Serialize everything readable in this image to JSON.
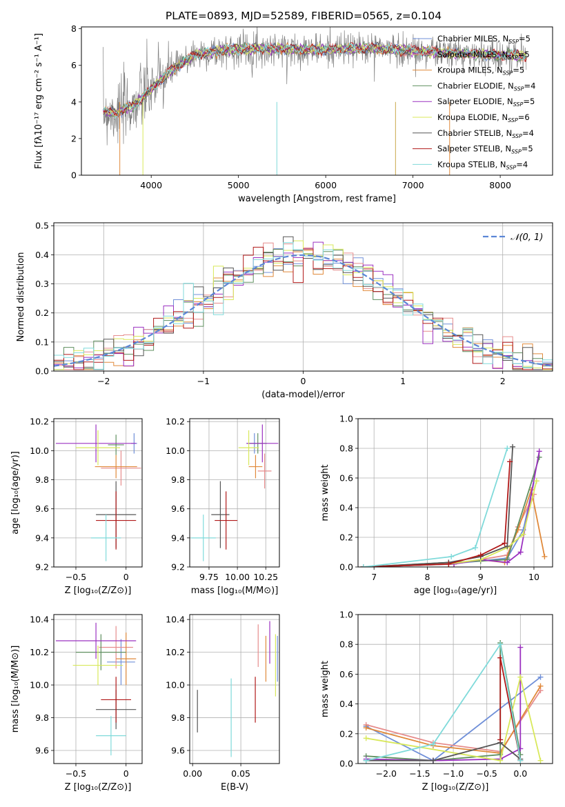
{
  "title": "PLATE=0893, MJD=52589, FIBERID=0565, z=0.104",
  "series": [
    {
      "key": "chabrier_miles",
      "color": "#6f8fd8",
      "label": "Chabrier MILES, N",
      "sub": "SSP",
      "tail": "=5"
    },
    {
      "key": "salpeter_miles",
      "color": "#e68c8c",
      "label": "Salpeter MILES, N",
      "sub": "SSP",
      "tail": "=5"
    },
    {
      "key": "kroupa_miles",
      "color": "#e0893a",
      "label": "Kroupa MILES, N",
      "sub": "SSP",
      "tail": "=5"
    },
    {
      "key": "chabrier_elodie",
      "color": "#5f8f5f",
      "label": "Chabrier ELODIE, N",
      "sub": "SSP",
      "tail": "=4"
    },
    {
      "key": "salpeter_elodie",
      "color": "#9b30c0",
      "label": "Salpeter ELODIE, N",
      "sub": "SSP",
      "tail": "=5"
    },
    {
      "key": "kroupa_elodie",
      "color": "#d8e85a",
      "label": "Kroupa ELODIE, N",
      "sub": "SSP",
      "tail": "=6"
    },
    {
      "key": "chabrier_stelib",
      "color": "#555555",
      "label": "Chabrier STELIB, N",
      "sub": "SSP",
      "tail": "=4"
    },
    {
      "key": "salpeter_stelib",
      "color": "#b01818",
      "label": "Salpeter STELIB, N",
      "sub": "SSP",
      "tail": "=5"
    },
    {
      "key": "kroupa_stelib",
      "color": "#7fdada",
      "label": "Kroupa STELIB, N",
      "sub": "SSP",
      "tail": "=4"
    }
  ],
  "chart_data": [
    {
      "id": "spectrum",
      "type": "line",
      "xlabel": "wavelength [Angstrom, rest frame]",
      "ylabel": "Flux [fλ10⁻¹⁷ erg cm⁻² s⁻¹ A⁻¹]",
      "xlim": [
        3200,
        8600
      ],
      "ylim": [
        0,
        8.1
      ],
      "xticks": [
        4000,
        5000,
        6000,
        7000,
        8000
      ],
      "yticks": [
        0,
        2,
        4,
        6,
        8
      ],
      "data_color": "#7f7f7f",
      "continuum": {
        "x": [
          3450,
          3600,
          3800,
          4000,
          4200,
          4500,
          5000,
          5500,
          6000,
          6500,
          7000,
          7500,
          8000,
          8300
        ],
        "y": [
          3.5,
          3.4,
          3.8,
          4.7,
          5.6,
          6.6,
          6.9,
          6.9,
          6.85,
          6.95,
          6.8,
          6.65,
          6.55,
          6.5
        ]
      }
    },
    {
      "id": "residuals",
      "type": "line",
      "xlabel": "(data-model)/error",
      "ylabel": "Normed distribution",
      "xlim": [
        -2.5,
        2.5
      ],
      "ylim": [
        0,
        0.51
      ],
      "xticks": [
        -2,
        -1,
        0,
        1,
        2
      ],
      "yticks": [
        0,
        0.1,
        0.2,
        0.3,
        0.4,
        0.5
      ],
      "legend": "𝒩(0, 1)",
      "legend_position": "top-right",
      "bin_width": 0.1,
      "normal_color": "#5b86d6"
    },
    {
      "id": "age_vs_Z",
      "type": "scatter",
      "xlabel": "Z [log₁₀(Z/Z⊙)]",
      "ylabel": "age  [log₁₀(age/yr)]",
      "xlim": [
        -0.72,
        0.16
      ],
      "ylim": [
        9.2,
        10.22
      ],
      "xticks": [
        -0.5,
        0.0
      ],
      "yticks": [
        9.2,
        9.4,
        9.6,
        9.8,
        10.0,
        10.2
      ],
      "points": [
        {
          "s": "chabrier_miles",
          "x": 0.08,
          "xerr": 0.03,
          "y": 10.05,
          "yerr": 0.07
        },
        {
          "s": "salpeter_miles",
          "x": -0.05,
          "xerr": 0.2,
          "y": 9.88,
          "yerr": 0.12
        },
        {
          "s": "kroupa_miles",
          "x": -0.1,
          "xerr": 0.21,
          "y": 9.89,
          "yerr": 0.08
        },
        {
          "s": "chabrier_elodie",
          "x": -0.1,
          "xerr": 0.08,
          "y": 10.04,
          "yerr": 0.07
        },
        {
          "s": "salpeter_elodie",
          "x": -0.3,
          "xerr": 0.4,
          "y": 10.05,
          "yerr": 0.13
        },
        {
          "s": "kroupa_elodie",
          "x": -0.28,
          "xerr": 0.22,
          "y": 10.02,
          "yerr": 0.12
        },
        {
          "s": "chabrier_stelib",
          "x": -0.1,
          "xerr": 0.2,
          "y": 9.56,
          "yerr": 0.23
        },
        {
          "s": "salpeter_stelib",
          "x": -0.1,
          "xerr": 0.2,
          "y": 9.52,
          "yerr": 0.2
        },
        {
          "s": "kroupa_stelib",
          "x": -0.2,
          "xerr": 0.15,
          "y": 9.4,
          "yerr": 0.16
        }
      ]
    },
    {
      "id": "age_vs_mass",
      "type": "scatter",
      "xlabel": "mass [log₁₀(M/M⊙)]",
      "ylabel": "",
      "xlim": [
        9.58,
        10.37
      ],
      "ylim": [
        9.2,
        10.22
      ],
      "xticks": [
        9.75,
        10.0,
        10.25
      ],
      "xticklabels": [
        "9.75",
        "10.00",
        "10.25"
      ],
      "yticks": [
        9.2,
        9.4,
        9.6,
        9.8,
        10.0,
        10.2
      ],
      "points": [
        {
          "s": "chabrier_miles",
          "x": 10.15,
          "xerr": 0.07,
          "y": 10.05,
          "yerr": 0.07
        },
        {
          "s": "salpeter_miles",
          "x": 10.24,
          "xerr": 0.06,
          "y": 9.86,
          "yerr": 0.12
        },
        {
          "s": "kroupa_miles",
          "x": 10.16,
          "xerr": 0.06,
          "y": 9.89,
          "yerr": 0.08
        },
        {
          "s": "chabrier_elodie",
          "x": 10.18,
          "xerr": 0.08,
          "y": 10.05,
          "yerr": 0.07
        },
        {
          "s": "salpeter_elodie",
          "x": 10.22,
          "xerr": 0.14,
          "y": 10.05,
          "yerr": 0.13
        },
        {
          "s": "kroupa_elodie",
          "x": 10.1,
          "xerr": 0.09,
          "y": 10.02,
          "yerr": 0.12
        },
        {
          "s": "chabrier_stelib",
          "x": 9.85,
          "xerr": 0.08,
          "y": 9.56,
          "yerr": 0.23
        },
        {
          "s": "salpeter_stelib",
          "x": 9.9,
          "xerr": 0.1,
          "y": 9.52,
          "yerr": 0.2
        },
        {
          "s": "kroupa_stelib",
          "x": 9.7,
          "xerr": 0.11,
          "y": 9.4,
          "yerr": 0.16
        }
      ]
    },
    {
      "id": "weight_vs_age",
      "type": "line",
      "xlabel": "age  [log₁₀(age/yr)]",
      "ylabel": "mass weight",
      "xlim": [
        6.7,
        10.35
      ],
      "ylim": [
        0,
        1.0
      ],
      "xticks": [
        7,
        8,
        9,
        10
      ],
      "yticks": [
        0,
        0.2,
        0.4,
        0.6,
        0.8,
        1.0
      ],
      "lines": [
        {
          "s": "chabrier_miles",
          "x": [
            6.8,
            8.4,
            9.0,
            9.5,
            9.8,
            10.0
          ],
          "y": [
            0.0,
            0.02,
            0.04,
            0.06,
            0.25,
            0.58
          ]
        },
        {
          "s": "salpeter_miles",
          "x": [
            6.8,
            8.4,
            9.0,
            9.5,
            9.7,
            10.0
          ],
          "y": [
            0.0,
            0.02,
            0.05,
            0.08,
            0.27,
            0.49
          ]
        },
        {
          "s": "kroupa_miles",
          "x": [
            6.8,
            8.5,
            9.0,
            9.45,
            9.7,
            9.95,
            10.2
          ],
          "y": [
            0.0,
            0.02,
            0.05,
            0.03,
            0.25,
            0.52,
            0.07
          ]
        },
        {
          "s": "chabrier_elodie",
          "x": [
            6.8,
            8.4,
            9.0,
            9.5,
            10.1
          ],
          "y": [
            0.0,
            0.03,
            0.04,
            0.05,
            0.74
          ]
        },
        {
          "s": "salpeter_elodie",
          "x": [
            6.8,
            8.5,
            9.0,
            9.5,
            9.75,
            10.1
          ],
          "y": [
            0.0,
            0.02,
            0.05,
            0.03,
            0.1,
            0.78
          ]
        },
        {
          "s": "kroupa_elodie",
          "x": [
            6.8,
            8.4,
            9.0,
            9.5,
            9.8,
            10.05
          ],
          "y": [
            0.0,
            0.02,
            0.05,
            0.13,
            0.22,
            0.58
          ]
        },
        {
          "s": "chabrier_stelib",
          "x": [
            6.8,
            8.4,
            9.0,
            9.5,
            9.6
          ],
          "y": [
            0.0,
            0.03,
            0.07,
            0.14,
            0.81
          ]
        },
        {
          "s": "salpeter_stelib",
          "x": [
            6.8,
            8.4,
            9.0,
            9.45,
            9.55
          ],
          "y": [
            0.0,
            0.02,
            0.08,
            0.16,
            0.71
          ]
        },
        {
          "s": "kroupa_stelib",
          "x": [
            6.8,
            8.45,
            8.9,
            9.5
          ],
          "y": [
            0.0,
            0.07,
            0.13,
            0.8
          ]
        }
      ]
    },
    {
      "id": "mass_vs_Z",
      "type": "scatter",
      "xlabel": "Z [log₁₀(Z/Z⊙)]",
      "ylabel": "mass [log₁₀(M/M⊙)]",
      "xlim": [
        -0.72,
        0.16
      ],
      "ylim": [
        9.52,
        10.43
      ],
      "xticks": [
        -0.5,
        0.0
      ],
      "yticks": [
        9.6,
        9.8,
        10.0,
        10.2,
        10.4
      ],
      "points": [
        {
          "s": "chabrier_miles",
          "x": -0.05,
          "xerr": 0.14,
          "y": 10.14,
          "yerr": 0.14
        },
        {
          "s": "salpeter_miles",
          "x": -0.1,
          "xerr": 0.17,
          "y": 10.23,
          "yerr": 0.13
        },
        {
          "s": "kroupa_miles",
          "x": 0.0,
          "xerr": 0.1,
          "y": 10.16,
          "yerr": 0.16
        },
        {
          "s": "chabrier_elodie",
          "x": -0.25,
          "xerr": 0.25,
          "y": 10.2,
          "yerr": 0.11
        },
        {
          "s": "salpeter_elodie",
          "x": -0.3,
          "xerr": 0.4,
          "y": 10.27,
          "yerr": 0.11
        },
        {
          "s": "kroupa_elodie",
          "x": -0.28,
          "xerr": 0.25,
          "y": 10.12,
          "yerr": 0.12
        },
        {
          "s": "chabrier_stelib",
          "x": -0.1,
          "xerr": 0.2,
          "y": 9.85,
          "yerr": 0.12
        },
        {
          "s": "salpeter_stelib",
          "x": -0.1,
          "xerr": 0.15,
          "y": 9.91,
          "yerr": 0.14
        },
        {
          "s": "kroupa_stelib",
          "x": -0.15,
          "xerr": 0.15,
          "y": 9.69,
          "yerr": 0.12
        }
      ]
    },
    {
      "id": "mass_vs_ebv",
      "type": "scatter",
      "xlabel": "E(B-V)",
      "ylabel": "",
      "xlim": [
        -0.003,
        0.09
      ],
      "ylim": [
        9.52,
        10.43
      ],
      "xticks": [
        0.0,
        0.05
      ],
      "xticklabels": [
        "0.00",
        "0.05"
      ],
      "yticks": [
        9.6,
        9.8,
        10.0,
        10.2,
        10.4
      ],
      "points": [
        {
          "s": "chabrier_miles",
          "x": 0.088,
          "y": 10.16,
          "yerr": 0.14
        },
        {
          "s": "salpeter_miles",
          "x": 0.068,
          "y": 10.24,
          "yerr": 0.13
        },
        {
          "s": "kroupa_miles",
          "x": 0.076,
          "y": 10.16,
          "yerr": 0.14
        },
        {
          "s": "chabrier_elodie",
          "x": 0.094,
          "y": 10.18,
          "yerr": 0.13
        },
        {
          "s": "salpeter_elodie",
          "x": 0.08,
          "y": 10.26,
          "yerr": 0.13
        },
        {
          "s": "kroupa_elodie",
          "x": 0.086,
          "y": 10.12,
          "yerr": 0.19
        },
        {
          "s": "chabrier_stelib",
          "x": 0.005,
          "y": 9.84,
          "yerr": 0.13
        },
        {
          "s": "salpeter_stelib",
          "x": 0.065,
          "y": 9.91,
          "yerr": 0.14
        },
        {
          "s": "kroupa_stelib",
          "x": 0.04,
          "y": 9.8,
          "yerr": 0.24
        }
      ]
    },
    {
      "id": "weight_vs_Z",
      "type": "line",
      "xlabel": "Z [log₁₀(Z/Z⊙)]",
      "ylabel": "mass weight",
      "xlim": [
        -2.42,
        0.48
      ],
      "ylim": [
        0,
        1.0
      ],
      "xticks": [
        -2.0,
        -1.5,
        -1.0,
        -0.5,
        0.0
      ],
      "xticklabels": [
        "−2.0",
        "−1.5",
        "−1.0",
        "−0.5",
        "0.0"
      ],
      "yticks": [
        0,
        0.2,
        0.4,
        0.6,
        0.8,
        1.0
      ],
      "lines": [
        {
          "s": "chabrier_miles",
          "x": [
            -2.3,
            -1.3,
            0.3
          ],
          "y": [
            0.25,
            0.02,
            0.58
          ]
        },
        {
          "s": "salpeter_miles",
          "x": [
            -2.3,
            -1.3,
            -0.3,
            0.3
          ],
          "y": [
            0.26,
            0.14,
            0.08,
            0.49
          ]
        },
        {
          "s": "kroupa_miles",
          "x": [
            -2.3,
            -1.3,
            -0.3,
            0.3
          ],
          "y": [
            0.24,
            0.12,
            0.07,
            0.52
          ]
        },
        {
          "s": "chabrier_elodie",
          "x": [
            -2.3,
            -1.3,
            -0.3,
            -0.3,
            0.0
          ],
          "y": [
            0.05,
            0.02,
            0.06,
            0.81,
            0.06
          ]
        },
        {
          "s": "salpeter_elodie",
          "x": [
            -2.3,
            -1.3,
            -0.3,
            0.0,
            0.0
          ],
          "y": [
            0.03,
            0.02,
            0.03,
            0.1,
            0.78
          ]
        },
        {
          "s": "kroupa_elodie",
          "x": [
            -2.3,
            -0.3,
            0.0,
            0.3
          ],
          "y": [
            0.17,
            0.02,
            0.58,
            0.02
          ]
        },
        {
          "s": "chabrier_stelib",
          "x": [
            -2.3,
            -1.3,
            -0.3,
            0.0
          ],
          "y": [
            0.02,
            0.02,
            0.14,
            0.03
          ]
        },
        {
          "s": "salpeter_stelib",
          "x": [
            -0.3,
            -0.3,
            0.0
          ],
          "y": [
            0.16,
            0.71,
            0.02
          ]
        },
        {
          "s": "kroupa_stelib",
          "x": [
            -2.3,
            -1.3,
            -0.3,
            0.0
          ],
          "y": [
            0.02,
            0.13,
            0.8,
            0.02
          ]
        }
      ]
    }
  ]
}
